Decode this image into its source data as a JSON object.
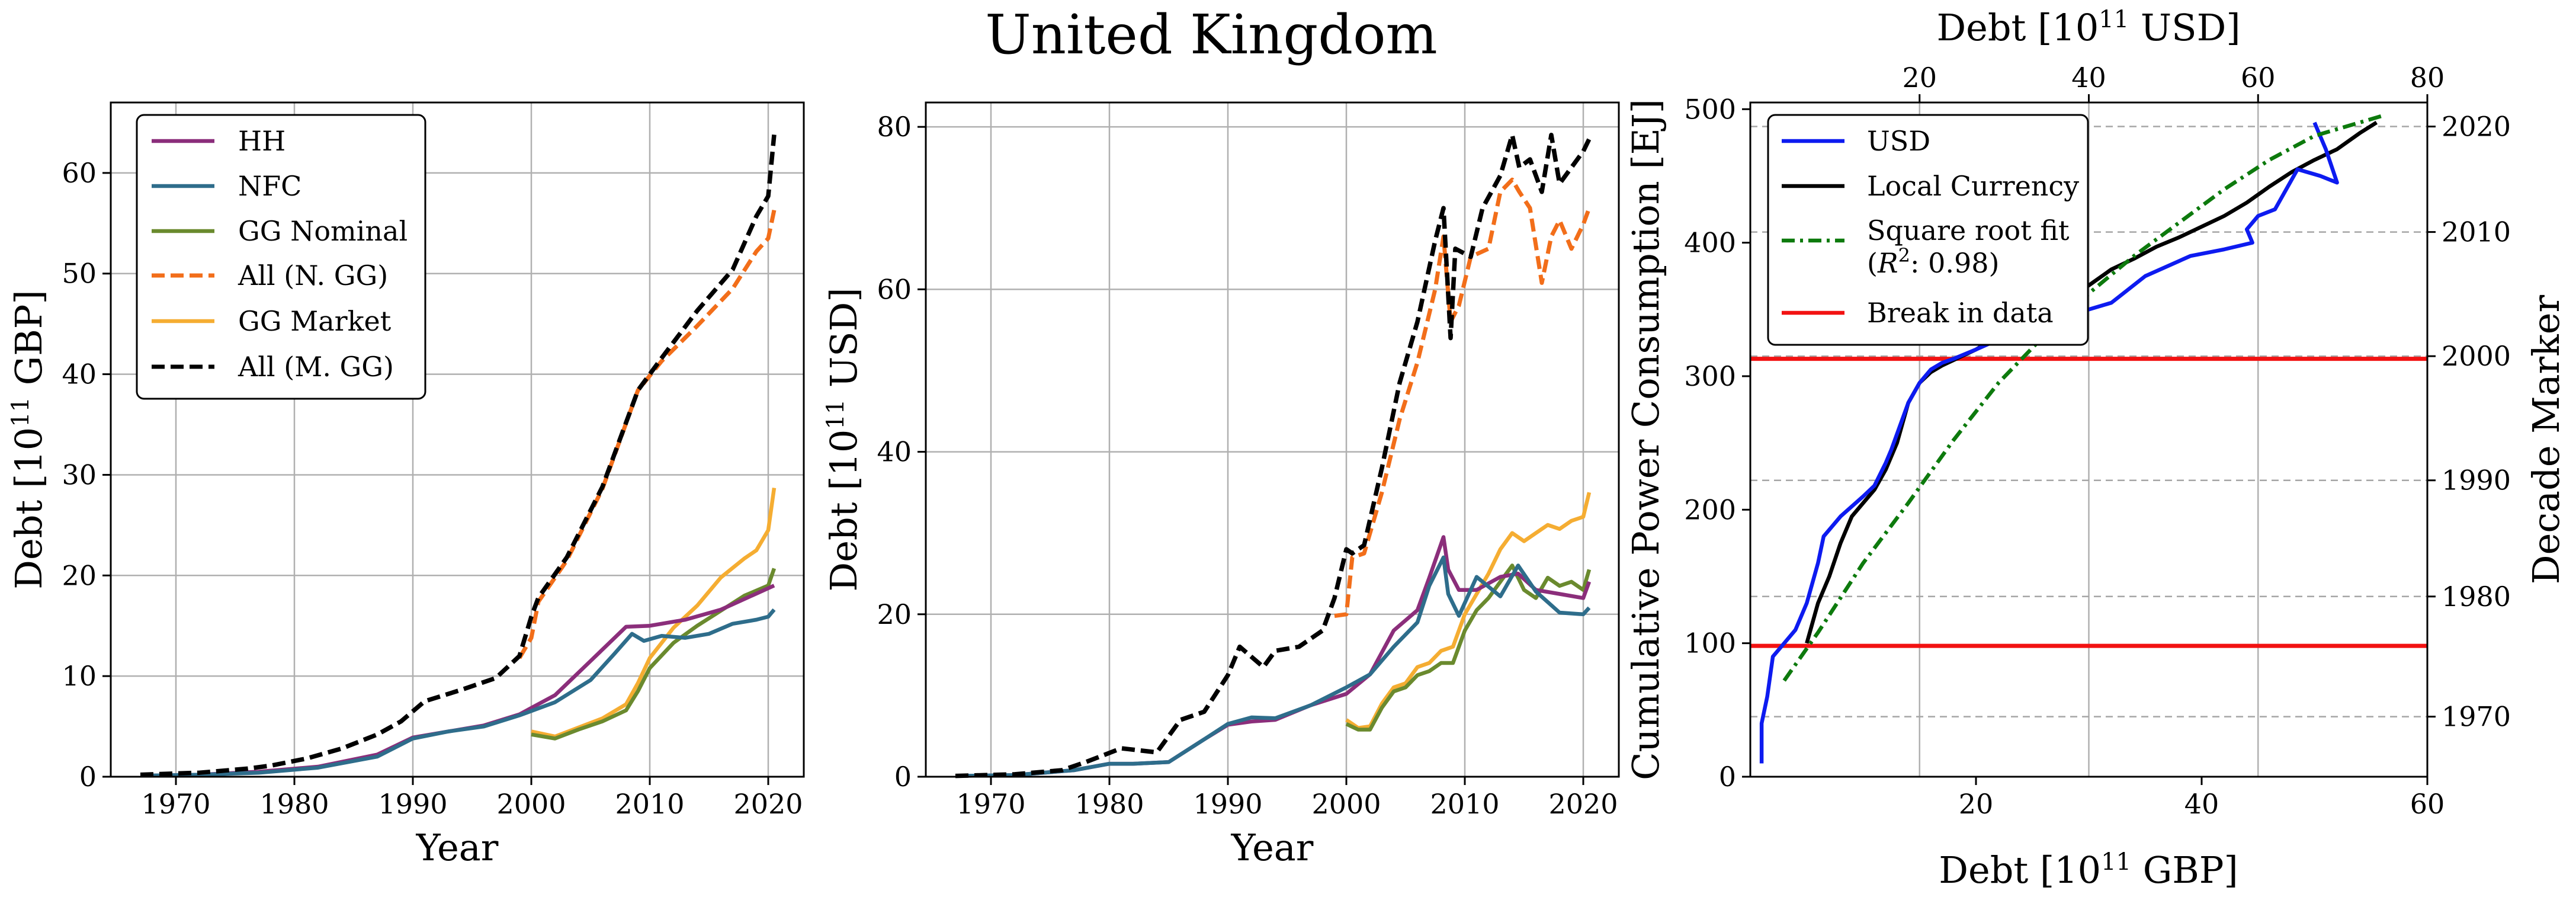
{
  "title": "United Kingdom",
  "colors": {
    "HH": "#8b2e7b",
    "NFC": "#2e6d8b",
    "GG_nominal": "#6a8a2e",
    "all_n_gg": "#f26e1a",
    "gg_market": "#f5ad32",
    "all_m_gg": "#000000",
    "usd": "#0d1bf0",
    "local": "#000000",
    "fit": "#0d7a0d",
    "break": "#f21212"
  },
  "chart_data": [
    {
      "type": "line",
      "xlabel": "Year",
      "ylabel": "Debt [10^11 GBP]",
      "ylabel_base": "Debt [10",
      "ylabel_exp": "11",
      "ylabel_unit": " GBP]",
      "xlim": [
        1964.5,
        2023
      ],
      "ylim": [
        0,
        67
      ],
      "xticks": [
        1970,
        1980,
        1990,
        2000,
        2010,
        2020
      ],
      "yticks": [
        0,
        10,
        20,
        30,
        40,
        50,
        60
      ],
      "legend": [
        "HH",
        "NFC",
        "GG Nominal",
        "All (N. GG)",
        "GG Market",
        "All (M. GG)"
      ],
      "series": [
        {
          "name": "HH",
          "x": [
            1967,
            1972,
            1977,
            1982,
            1987,
            1990,
            1993,
            1996,
            1999,
            2002,
            2005,
            2008,
            2010,
            2013,
            2016,
            2019,
            2020.5
          ],
          "y": [
            0.1,
            0.2,
            0.5,
            1.0,
            2.2,
            3.9,
            4.5,
            5.1,
            6.2,
            8.1,
            11.5,
            14.9,
            15.0,
            15.6,
            16.6,
            18.2,
            19.0
          ]
        },
        {
          "name": "NFC",
          "x": [
            1967,
            1972,
            1977,
            1982,
            1987,
            1990,
            1993,
            1996,
            1999,
            2002,
            2005,
            2007,
            2008.5,
            2009.5,
            2011,
            2013,
            2015,
            2017,
            2019,
            2020,
            2020.5
          ],
          "y": [
            0.1,
            0.2,
            0.4,
            0.9,
            2.0,
            3.8,
            4.5,
            5.0,
            6.1,
            7.4,
            9.6,
            12.2,
            14.2,
            13.5,
            14.0,
            13.8,
            14.2,
            15.2,
            15.6,
            15.9,
            16.6
          ]
        },
        {
          "name": "GG Nominal",
          "x": [
            2000,
            2002,
            2004,
            2006,
            2008,
            2009,
            2010,
            2012,
            2014,
            2016,
            2018,
            2020,
            2020.5
          ],
          "y": [
            4.2,
            3.8,
            4.7,
            5.5,
            6.6,
            8.5,
            10.8,
            13.3,
            15.0,
            16.5,
            18.0,
            19.0,
            20.7
          ]
        },
        {
          "name": "All (N. GG)",
          "x": [
            1999,
            2000,
            2000.6,
            2003,
            2006,
            2009,
            2011,
            2014,
            2017,
            2019,
            2020,
            2020.5
          ],
          "y": [
            11.8,
            13.8,
            17.4,
            21.5,
            28.6,
            38.4,
            41.3,
            44.8,
            48.5,
            52.2,
            53.5,
            56.3
          ]
        },
        {
          "name": "GG Market",
          "x": [
            2000,
            2002,
            2004,
            2006,
            2008,
            2009,
            2010,
            2012,
            2014,
            2016,
            2018,
            2019,
            2020,
            2020.5
          ],
          "y": [
            4.5,
            4.0,
            4.9,
            5.8,
            7.2,
            9.3,
            11.8,
            14.8,
            17.0,
            19.8,
            21.7,
            22.5,
            24.5,
            28.7
          ]
        },
        {
          "name": "All (M. GG)",
          "x": [
            1967,
            1972,
            1976,
            1978,
            1981,
            1984,
            1987,
            1989,
            1991,
            1994,
            1997,
            1999,
            2000,
            2000.6,
            2003,
            2006,
            2009,
            2011,
            2014,
            2017,
            2019,
            2020,
            2020.5
          ],
          "y": [
            0.2,
            0.4,
            0.8,
            1.1,
            1.8,
            2.8,
            4.2,
            5.5,
            7.5,
            8.6,
            9.8,
            12.0,
            15.9,
            17.8,
            21.8,
            28.8,
            38.4,
            41.6,
            46.3,
            50.4,
            55.7,
            57.7,
            63.8
          ]
        }
      ]
    },
    {
      "type": "line",
      "xlabel": "Year",
      "ylabel": "Debt [10^11 USD]",
      "ylabel_base": "Debt [10",
      "ylabel_exp": "11",
      "ylabel_unit": " USD]",
      "xlim": [
        1964.5,
        2023
      ],
      "ylim": [
        0,
        83
      ],
      "xticks": [
        1970,
        1980,
        1990,
        2000,
        2010,
        2020
      ],
      "yticks": [
        0,
        20,
        40,
        60,
        80
      ],
      "series": [
        {
          "name": "HH",
          "x": [
            1967,
            1972,
            1977,
            1980,
            1982,
            1985,
            1988,
            1990,
            1992,
            1994,
            1997,
            2000,
            2002,
            2004,
            2006,
            2007,
            2008.2,
            2008.6,
            2009.5,
            2011,
            2013,
            2014.5,
            2016,
            2018,
            2020,
            2020.5
          ],
          "y": [
            0.1,
            0.2,
            0.8,
            1.6,
            1.6,
            1.8,
            4.6,
            6.4,
            6.8,
            7.0,
            8.8,
            10.2,
            12.6,
            18.0,
            20.5,
            24.5,
            29.5,
            25.5,
            23.0,
            23.0,
            24.6,
            25.0,
            23.0,
            22.5,
            22.0,
            24.0
          ]
        },
        {
          "name": "NFC",
          "x": [
            1967,
            1972,
            1977,
            1980,
            1982,
            1985,
            1988,
            1990,
            1992,
            1994,
            1997,
            2000,
            2002,
            2004,
            2006,
            2007,
            2008.2,
            2008.6,
            2009.5,
            2011,
            2013,
            2014.5,
            2016,
            2018,
            2020,
            2020.5
          ],
          "y": [
            0.1,
            0.2,
            0.8,
            1.6,
            1.6,
            1.8,
            4.6,
            6.5,
            7.3,
            7.2,
            8.8,
            11.0,
            12.6,
            16.0,
            19.0,
            23.5,
            27.0,
            22.5,
            19.8,
            24.6,
            22.2,
            26.0,
            22.8,
            20.2,
            20.0,
            20.8
          ]
        },
        {
          "name": "GG Nominal",
          "x": [
            2000,
            2001,
            2002,
            2003,
            2004,
            2005,
            2006,
            2007,
            2008,
            2009,
            2010,
            2011,
            2012,
            2013,
            2014,
            2015,
            2016,
            2017,
            2018,
            2019,
            2020,
            2020.5
          ],
          "y": [
            6.5,
            5.8,
            5.8,
            8.5,
            10.5,
            11.0,
            12.5,
            13.0,
            14.0,
            14.0,
            18.0,
            20.5,
            22.0,
            24.0,
            26.0,
            23.0,
            22.0,
            24.5,
            23.5,
            24.0,
            23.0,
            25.5
          ]
        },
        {
          "name": "All (N. GG)",
          "x": [
            1999,
            2000,
            2000.5,
            2001.5,
            2003,
            2004.5,
            2006,
            2007.5,
            2008.2,
            2008.8,
            2009.5,
            2010.5,
            2012,
            2013,
            2014,
            2014.6,
            2015.5,
            2016.5,
            2017.3,
            2018,
            2019,
            2020,
            2020.5
          ],
          "y": [
            19.8,
            20.0,
            27.0,
            27.5,
            35.0,
            44.0,
            51.0,
            60.0,
            66.5,
            56.0,
            58.0,
            64.0,
            65.0,
            72.0,
            73.5,
            72.0,
            70.0,
            60.8,
            66.5,
            68.5,
            65.0,
            68.0,
            70.0
          ]
        },
        {
          "name": "GG Market",
          "x": [
            2000,
            2001,
            2002,
            2003,
            2004,
            2005,
            2006,
            2007,
            2008,
            2009,
            2010,
            2011,
            2012,
            2013,
            2014,
            2015,
            2016,
            2017,
            2018,
            2019,
            2020,
            2020.5
          ],
          "y": [
            7.0,
            6.0,
            6.2,
            9.0,
            11.0,
            11.5,
            13.5,
            14.0,
            15.5,
            16.0,
            20.0,
            22.5,
            25.0,
            28.0,
            30.0,
            29.0,
            30.0,
            31.0,
            30.5,
            31.5,
            32.0,
            35.0
          ]
        },
        {
          "name": "All (M. GG)",
          "x": [
            1967,
            1972,
            1976,
            1978,
            1981,
            1984,
            1986,
            1988,
            1990,
            1991,
            1993,
            1994,
            1996,
            1998,
            1999,
            2000,
            2000.5,
            2001.5,
            2003,
            2004.5,
            2006,
            2007.5,
            2008.2,
            2008.8,
            2009.2,
            2010.5,
            2011.5,
            2013,
            2014,
            2014.6,
            2015.5,
            2016.5,
            2017.3,
            2018,
            2019,
            2020,
            2020.5
          ],
          "y": [
            0.1,
            0.3,
            0.8,
            1.8,
            3.5,
            3.0,
            7.0,
            8.0,
            12.5,
            16.0,
            13.5,
            15.5,
            16.0,
            18.0,
            22.0,
            28.0,
            27.5,
            28.5,
            38.0,
            48.5,
            56.0,
            66.0,
            70.0,
            54.0,
            65.0,
            64.0,
            70.0,
            74.0,
            79.0,
            75.0,
            76.0,
            72.0,
            79.0,
            73.0,
            75.0,
            77.0,
            78.5
          ]
        }
      ]
    },
    {
      "type": "line",
      "xlabel": "Debt [10^11 GBP]",
      "xlabel_base": "Debt [10",
      "xlabel_exp": "11",
      "xlabel_unit": " GBP]",
      "top_xlabel": "Debt [10^11 USD]",
      "top_xlabel_base": "Debt [10",
      "top_xlabel_exp": "11",
      "top_xlabel_unit": " USD]",
      "ylabel": "Cumulative Power Consumption [EJ]",
      "right_ylabel": "Decade Marker",
      "xlim": [
        0,
        60
      ],
      "ylim": [
        0,
        505
      ],
      "xticks": [
        20,
        40,
        60
      ],
      "yticks": [
        0,
        100,
        200,
        300,
        400,
        500
      ],
      "top_xlim": [
        0,
        80
      ],
      "top_xticks": [
        20,
        40,
        60,
        80
      ],
      "decade_markers": [
        {
          "label": "1970",
          "y": 45
        },
        {
          "label": "1980",
          "y": 135
        },
        {
          "label": "1990",
          "y": 222
        },
        {
          "label": "2000",
          "y": 315
        },
        {
          "label": "2010",
          "y": 408
        },
        {
          "label": "2020",
          "y": 487
        }
      ],
      "break_lines_y": [
        98,
        313
      ],
      "legend": [
        "USD",
        "Local Currency",
        "Square root fit",
        "(R^2: 0.98)",
        "Break in data"
      ],
      "legend_fit_line1": "Square root fit",
      "legend_fit_line2_pre": "(",
      "legend_fit_line2_var": "R",
      "legend_fit_line2_exp": "2",
      "legend_fit_line2_post": ": 0.98)",
      "series": [
        {
          "name": "USD",
          "x": [
            1,
            1,
            1.5,
            2,
            3,
            4,
            5,
            6,
            6.5,
            8,
            10,
            11,
            12,
            12.5,
            14,
            15,
            16,
            17,
            18,
            20,
            24,
            28,
            32,
            35,
            39,
            42,
            44.5,
            44,
            45,
            46.5,
            48.5,
            50.5,
            52,
            51,
            50.5,
            50
          ],
          "y": [
            10,
            40,
            60,
            90,
            100,
            110,
            130,
            160,
            180,
            195,
            210,
            218,
            235,
            245,
            280,
            295,
            305,
            310,
            313,
            320,
            335,
            345,
            355,
            375,
            390,
            395,
            400,
            410,
            420,
            425,
            455,
            450,
            445,
            470,
            480,
            490
          ]
        },
        {
          "name": "Local Currency",
          "x": [
            5,
            6,
            7,
            8,
            9,
            10,
            11,
            12,
            13,
            14,
            15,
            16,
            17,
            18,
            20,
            22,
            24,
            26,
            28,
            30,
            32,
            34,
            36,
            38,
            40,
            42,
            44,
            46,
            48,
            50,
            52,
            54,
            55.5
          ],
          "y": [
            100,
            130,
            150,
            175,
            195,
            205,
            215,
            230,
            250,
            280,
            295,
            303,
            308,
            312,
            320,
            330,
            342,
            353,
            360,
            368,
            380,
            388,
            397,
            404,
            412,
            420,
            430,
            442,
            453,
            462,
            470,
            482,
            490
          ]
        },
        {
          "name": "Square root fit",
          "x": [
            3,
            6,
            10,
            14,
            18,
            22,
            26,
            30,
            34,
            38,
            42,
            46,
            50,
            54,
            56
          ],
          "y": [
            72,
            108,
            160,
            205,
            252,
            295,
            330,
            362,
            390,
            415,
            440,
            462,
            480,
            490,
            495
          ]
        },
        {
          "name": "Break in data",
          "y": [
            98,
            313
          ]
        }
      ]
    }
  ]
}
